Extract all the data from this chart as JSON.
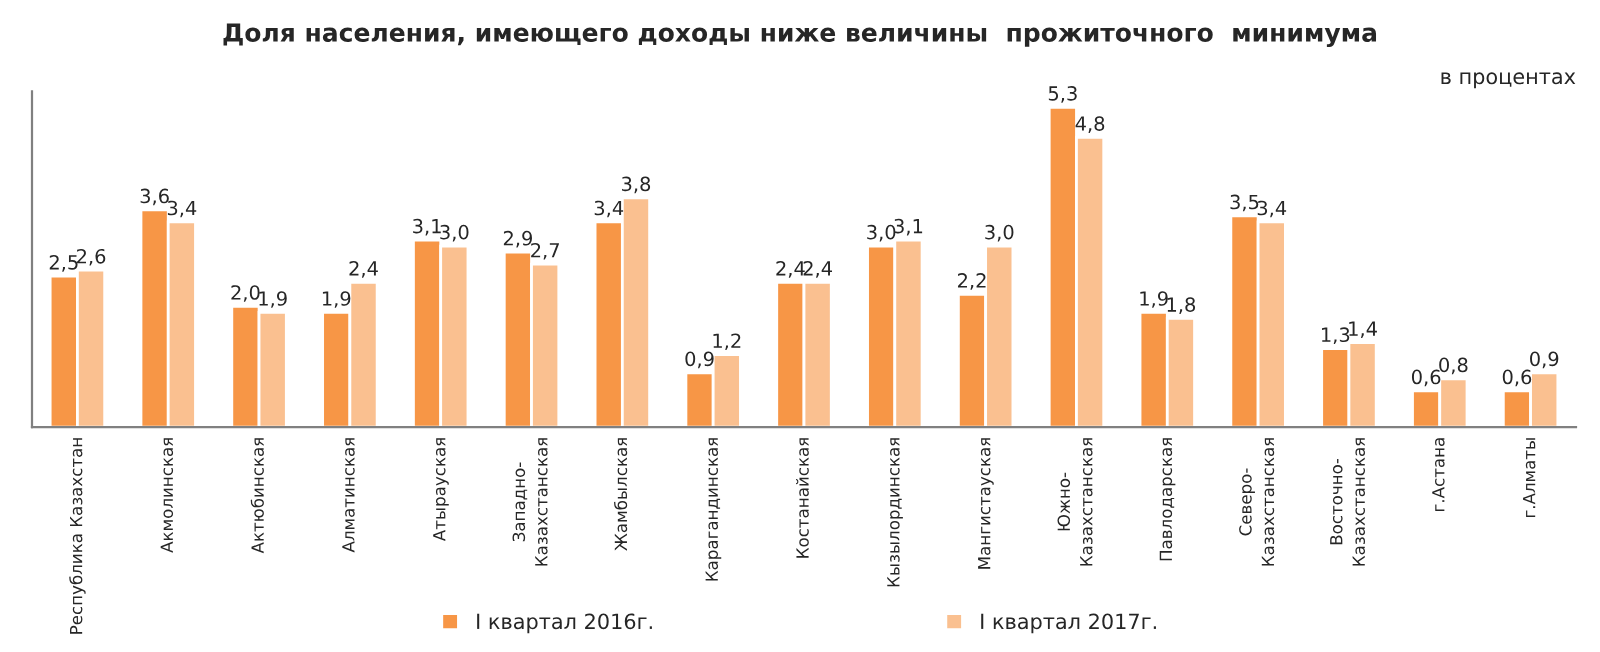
{
  "chart_data": {
    "type": "bar",
    "title": "Доля населения, имеющего доходы ниже величины  прожиточного  минимума",
    "annotations": [
      "в процентах"
    ],
    "categories": [
      "Республика Казахстан",
      "Акмолинская",
      "Актюбинская",
      "Алматинская",
      "Атырауская",
      "Западно-\nКазахстанская",
      "Жамбылская",
      "Карагандинская",
      "Костанайская",
      "Кызылординская",
      "Мангистауская",
      "Южно-\nКазахстанская",
      "Павлодарская",
      "Северо-\nКазахстанская",
      "Восточно-\nКазахстанская",
      "г.Астана",
      "г.Алматы"
    ],
    "series": [
      {
        "name": "I квартал 2016г.",
        "color": "#f79646",
        "values": [
          2.5,
          3.6,
          2.0,
          1.9,
          3.1,
          2.9,
          3.4,
          0.9,
          2.4,
          3.0,
          2.2,
          5.3,
          1.9,
          3.5,
          1.3,
          0.6,
          0.6
        ],
        "value_labels": [
          "2,5",
          "3,6",
          "2,0",
          "1,9",
          "3,1",
          "2,9",
          "3,4",
          "0,9",
          "2,4",
          "3,0",
          "2,2",
          "5,3",
          "1,9",
          "3,5",
          "1,3",
          "0,6",
          "0,6"
        ]
      },
      {
        "name": "I квартал 2017г.",
        "color": "#fac090",
        "values": [
          2.6,
          3.4,
          1.9,
          2.4,
          3.0,
          2.7,
          3.8,
          1.2,
          2.4,
          3.1,
          3.0,
          4.8,
          1.8,
          3.4,
          1.4,
          0.8,
          0.9
        ],
        "value_labels": [
          "2,6",
          "3,4",
          "1,9",
          "2,4",
          "3,0",
          "2,7",
          "3,8",
          "1,2",
          "2,4",
          "3,1",
          "3,0",
          "4,8",
          "1,8",
          "3,4",
          "1,4",
          "0,8",
          "0,9"
        ]
      }
    ],
    "tick_labels": "x",
    "legend": "bottom",
    "grid": false
  }
}
